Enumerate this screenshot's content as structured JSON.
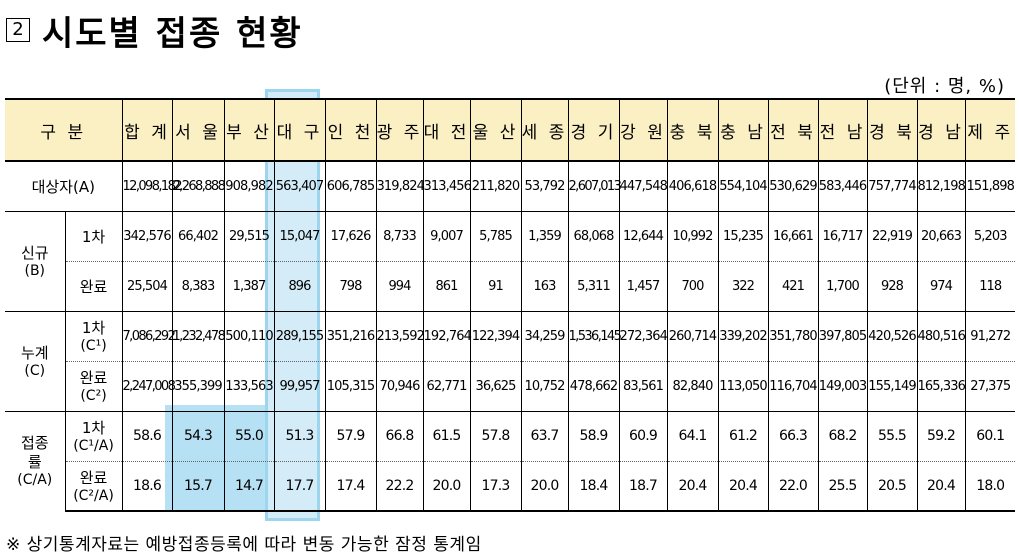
{
  "title": {
    "box": "2",
    "text": "시도별 접종 현황"
  },
  "unit_note": "(단위 : 명, %)",
  "header": {
    "category": "구 분",
    "regions": [
      "합 계",
      "서 울",
      "부 산",
      "대 구",
      "인 천",
      "광 주",
      "대 전",
      "울 산",
      "세 종",
      "경 기",
      "강 원",
      "충 북",
      "충 남",
      "전 북",
      "전 남",
      "경 북",
      "경 남",
      "제 주"
    ]
  },
  "rows": {
    "target": {
      "label": "대상자(A)",
      "values": [
        "12,098,182",
        "2,268,888",
        "908,982",
        "563,407",
        "606,785",
        "319,824",
        "313,456",
        "211,820",
        "53,792",
        "2,607,013",
        "447,548",
        "406,618",
        "554,104",
        "530,629",
        "583,446",
        "757,774",
        "812,198",
        "151,898"
      ]
    },
    "new": {
      "label": "신규",
      "label_sub": "(B)",
      "first": {
        "label": "1차",
        "values": [
          "342,576",
          "66,402",
          "29,515",
          "15,047",
          "17,626",
          "8,733",
          "9,007",
          "5,785",
          "1,359",
          "68,068",
          "12,644",
          "10,992",
          "15,235",
          "16,661",
          "16,717",
          "22,919",
          "20,663",
          "5,203"
        ]
      },
      "done": {
        "label": "완료",
        "values": [
          "25,504",
          "8,383",
          "1,387",
          "896",
          "798",
          "994",
          "861",
          "91",
          "163",
          "5,311",
          "1,457",
          "700",
          "322",
          "421",
          "1,700",
          "928",
          "974",
          "118"
        ]
      }
    },
    "cum": {
      "label": "누계",
      "label_sub": "(C)",
      "first": {
        "label": "1차",
        "label_sub": "(C¹)",
        "values": [
          "7,086,292",
          "1,232,478",
          "500,110",
          "289,155",
          "351,216",
          "213,592",
          "192,764",
          "122,394",
          "34,259",
          "1,536,145",
          "272,364",
          "260,714",
          "339,202",
          "351,780",
          "397,805",
          "420,526",
          "480,516",
          "91,272"
        ]
      },
      "done": {
        "label": "완료",
        "label_sub": "(C²)",
        "values": [
          "2,247,008",
          "355,399",
          "133,563",
          "99,957",
          "105,315",
          "70,946",
          "62,771",
          "36,625",
          "10,752",
          "478,662",
          "83,561",
          "82,840",
          "113,050",
          "116,704",
          "149,003",
          "155,149",
          "165,336",
          "27,375"
        ]
      }
    },
    "rate": {
      "label": "접종률",
      "label_sub": "(C/A)",
      "first": {
        "label": "1차",
        "label_sub": "(C¹/A)",
        "values": [
          "58.6",
          "54.3",
          "55.0",
          "51.3",
          "57.9",
          "66.8",
          "61.5",
          "57.8",
          "63.7",
          "58.9",
          "60.9",
          "64.1",
          "61.2",
          "66.3",
          "68.2",
          "55.5",
          "59.2",
          "60.1"
        ]
      },
      "done": {
        "label": "완료",
        "label_sub": "(C²/A)",
        "values": [
          "18.6",
          "15.7",
          "14.7",
          "17.7",
          "17.4",
          "22.2",
          "20.0",
          "17.3",
          "20.0",
          "18.4",
          "18.7",
          "20.4",
          "20.4",
          "22.0",
          "25.5",
          "20.5",
          "20.4",
          "18.0"
        ]
      }
    }
  },
  "footnote": "※ 상기통계자료는 예방접종등록에 따라 변동 가능한 잠정 통계임",
  "colors": {
    "header_bg": "#fbf0c4",
    "highlight": "#9dd5ef"
  }
}
